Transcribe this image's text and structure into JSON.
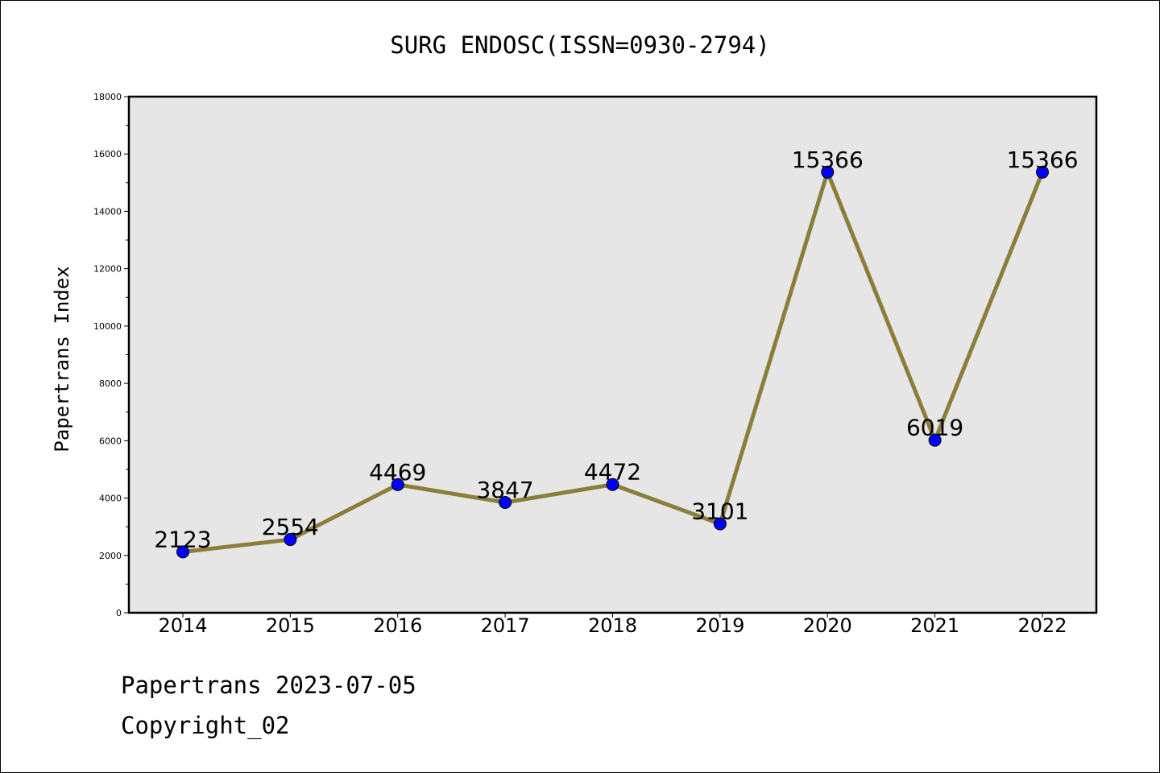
{
  "chart_data": {
    "type": "line",
    "title": "SURG ENDOSC(ISSN=0930-2794)",
    "xlabel": "",
    "ylabel": "Papertrans Index",
    "categories": [
      "2014",
      "2015",
      "2016",
      "2017",
      "2018",
      "2019",
      "2020",
      "2021",
      "2022"
    ],
    "series": [
      {
        "values": [
          2123,
          2554,
          4469,
          3847,
          4472,
          3101,
          15366,
          6019,
          15366
        ],
        "line_color": "#8b7d3a",
        "marker_color": "#0000ff"
      }
    ],
    "data_labels": [
      "2123",
      "2554",
      "4469",
      "3847",
      "4472",
      "3101",
      "15366",
      "6019",
      "15366"
    ],
    "ylim": [
      0,
      18000
    ],
    "yticks": [
      "0",
      "2000",
      "4000",
      "6000",
      "8000",
      "10000",
      "12000",
      "14000",
      "16000",
      "18000"
    ],
    "plot_background": "#e6e6e6",
    "grid": false,
    "legend": "none"
  },
  "footer": {
    "line1": "Papertrans 2023-07-05",
    "line2": "Copyright_02"
  }
}
